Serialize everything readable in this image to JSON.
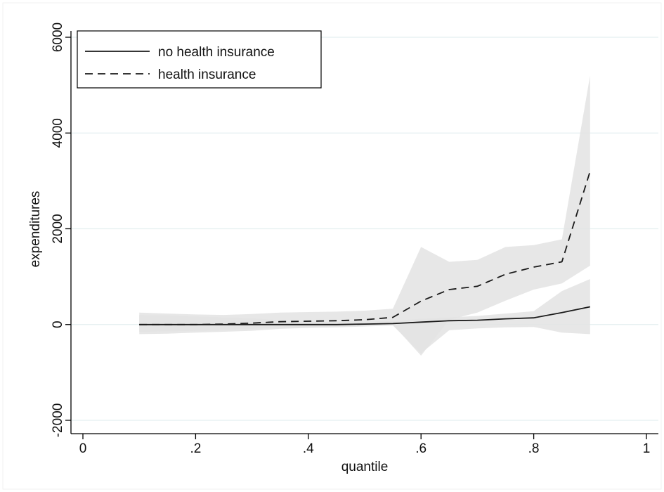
{
  "colors": {
    "background": "#ffffff",
    "plot_border": "#f2f2f2",
    "grid": "#e4eff0",
    "band": "#e3e3e3",
    "line": "#1a1a1a",
    "axis": "#000000"
  },
  "chart_data": {
    "type": "line",
    "title": "",
    "xlabel": "quantile",
    "ylabel": "expenditures",
    "xlim": [
      0,
      1
    ],
    "ylim": [
      -2000,
      6000
    ],
    "xticks": [
      {
        "value": 0,
        "label": "0"
      },
      {
        "value": 0.2,
        "label": ".2"
      },
      {
        "value": 0.4,
        "label": ".4"
      },
      {
        "value": 0.6,
        "label": ".6"
      },
      {
        "value": 0.8,
        "label": ".8"
      },
      {
        "value": 1,
        "label": "1"
      }
    ],
    "yticks": [
      {
        "value": -2000,
        "label": "-2000"
      },
      {
        "value": 0,
        "label": "0"
      },
      {
        "value": 2000,
        "label": "2000"
      },
      {
        "value": 4000,
        "label": "4000"
      },
      {
        "value": 6000,
        "label": "6000"
      }
    ],
    "grid": "horizontal",
    "legend_position": "top-left",
    "x": [
      0.1,
      0.15,
      0.2,
      0.25,
      0.3,
      0.35,
      0.4,
      0.45,
      0.5,
      0.55,
      0.6,
      0.65,
      0.7,
      0.75,
      0.8,
      0.85,
      0.9
    ],
    "series": [
      {
        "name": "no health insurance",
        "style": "solid",
        "values": [
          0,
          0,
          0,
          0,
          0,
          0,
          0,
          0,
          10,
          20,
          50,
          80,
          90,
          120,
          140,
          250,
          370
        ],
        "ci_lower": [
          -200,
          -190,
          -170,
          -150,
          -130,
          -90,
          -70,
          -60,
          -40,
          -20,
          -600,
          -120,
          -80,
          -60,
          -50,
          -170,
          -200
        ],
        "ci_upper": [
          200,
          190,
          170,
          150,
          130,
          90,
          70,
          60,
          60,
          80,
          120,
          150,
          180,
          230,
          280,
          700,
          950
        ]
      },
      {
        "name": "health insurance",
        "style": "dashed",
        "values": [
          0,
          0,
          0,
          10,
          30,
          60,
          70,
          80,
          100,
          150,
          490,
          730,
          800,
          1050,
          1200,
          1310,
          3200
        ],
        "ci_lower": [
          -150,
          -140,
          -130,
          -110,
          -90,
          -60,
          -50,
          -40,
          -20,
          0,
          -650,
          100,
          250,
          500,
          730,
          860,
          1230
        ],
        "ci_upper": [
          250,
          230,
          210,
          200,
          220,
          250,
          260,
          270,
          290,
          330,
          1620,
          1310,
          1350,
          1620,
          1660,
          1780,
          5200
        ]
      }
    ]
  }
}
